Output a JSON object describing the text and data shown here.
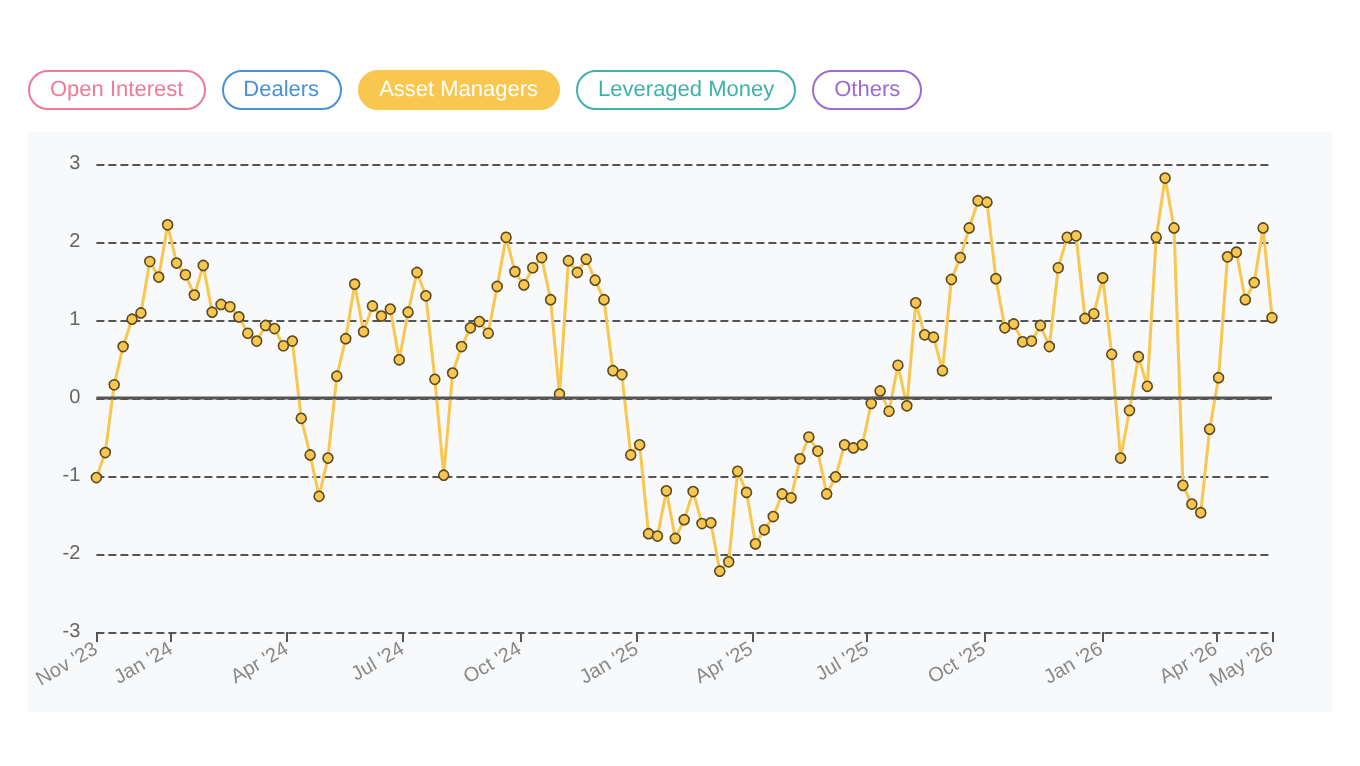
{
  "chart_data": {
    "type": "line",
    "legend": "top left",
    "grid": "y",
    "marker": "circle",
    "line_style": "solid",
    "ylim": [
      -3,
      3
    ],
    "yticks": [
      -3,
      -2,
      -1,
      0,
      1,
      2,
      3
    ],
    "xlim": [
      "2023-11-03",
      "2026-05-15"
    ],
    "xticks": [
      {
        "value": "2023-11-03",
        "label": "Nov '23"
      },
      {
        "value": "2024-01-01",
        "label": "Jan '24"
      },
      {
        "value": "2024-04-01",
        "label": "Apr '24"
      },
      {
        "value": "2024-07-01",
        "label": "Jul '24"
      },
      {
        "value": "2024-10-01",
        "label": "Oct '24"
      },
      {
        "value": "2025-01-01",
        "label": "Jan '25"
      },
      {
        "value": "2025-04-01",
        "label": "Apr '25"
      },
      {
        "value": "2025-07-01",
        "label": "Jul '25"
      },
      {
        "value": "2025-10-01",
        "label": "Oct '25"
      },
      {
        "value": "2026-01-01",
        "label": "Jan '26"
      },
      {
        "value": "2026-04-01",
        "label": "Apr '26"
      },
      {
        "value": "2026-05-15",
        "label": "May '26"
      }
    ],
    "ref_lines": [
      {
        "axis": "y",
        "value": 0,
        "color": "#555555",
        "line_style": "solid"
      }
    ],
    "x": [
      "2023-11-03",
      "2023-11-10",
      "2023-11-17",
      "2023-11-24",
      "2023-12-01",
      "2023-12-08",
      "2023-12-15",
      "2023-12-22",
      "2023-12-29",
      "2024-01-05",
      "2024-01-12",
      "2024-01-19",
      "2024-01-26",
      "2024-02-02",
      "2024-02-09",
      "2024-02-16",
      "2024-02-23",
      "2024-03-01",
      "2024-03-08",
      "2024-03-15",
      "2024-03-22",
      "2024-03-29",
      "2024-04-05",
      "2024-04-12",
      "2024-04-19",
      "2024-04-26",
      "2024-05-03",
      "2024-05-10",
      "2024-05-17",
      "2024-05-24",
      "2024-05-31",
      "2024-06-07",
      "2024-06-14",
      "2024-06-21",
      "2024-06-28",
      "2024-07-05",
      "2024-07-12",
      "2024-07-19",
      "2024-07-26",
      "2024-08-02",
      "2024-08-09",
      "2024-08-16",
      "2024-08-23",
      "2024-08-30",
      "2024-09-06",
      "2024-09-13",
      "2024-09-20",
      "2024-09-27",
      "2024-10-04",
      "2024-10-11",
      "2024-10-18",
      "2024-10-25",
      "2024-11-01",
      "2024-11-08",
      "2024-11-15",
      "2024-11-22",
      "2024-11-29",
      "2024-12-06",
      "2024-12-13",
      "2024-12-20",
      "2024-12-27",
      "2025-01-03",
      "2025-01-10",
      "2025-01-17",
      "2025-01-24",
      "2025-01-31",
      "2025-02-07",
      "2025-02-14",
      "2025-02-21",
      "2025-02-28",
      "2025-03-07",
      "2025-03-14",
      "2025-03-21",
      "2025-03-28",
      "2025-04-04",
      "2025-04-11",
      "2025-04-18",
      "2025-04-25",
      "2025-05-02",
      "2025-05-09",
      "2025-05-16",
      "2025-05-23",
      "2025-05-30",
      "2025-06-06",
      "2025-06-13",
      "2025-06-20",
      "2025-06-27",
      "2025-07-04",
      "2025-07-11",
      "2025-07-18",
      "2025-07-25",
      "2025-08-01",
      "2025-08-08",
      "2025-08-15",
      "2025-08-22",
      "2025-08-29",
      "2025-09-05",
      "2025-09-12",
      "2025-09-19",
      "2025-09-26",
      "2025-10-03",
      "2025-10-10",
      "2025-10-17",
      "2025-10-24",
      "2025-10-31",
      "2025-11-07",
      "2025-11-14",
      "2025-11-21",
      "2025-11-28",
      "2025-12-05",
      "2025-12-12",
      "2025-12-19",
      "2025-12-26",
      "2026-01-02",
      "2026-01-09",
      "2026-01-16",
      "2026-01-23",
      "2026-01-30",
      "2026-02-06",
      "2026-02-13",
      "2026-02-20",
      "2026-02-27",
      "2026-03-06",
      "2026-03-13",
      "2026-03-20",
      "2026-03-27",
      "2026-04-03",
      "2026-04-10",
      "2026-04-17",
      "2026-04-24",
      "2026-05-01",
      "2026-05-08",
      "2026-05-15"
    ],
    "series": [
      {
        "name": "Open Interest",
        "color": "#f0799a",
        "values": [
          null,
          null,
          null,
          null,
          null,
          null,
          null,
          null,
          null,
          null,
          null,
          null,
          null,
          null,
          null,
          null,
          null,
          null,
          null,
          null,
          null,
          null,
          null,
          null,
          null,
          null,
          null,
          null,
          null,
          null,
          null,
          null,
          null,
          null,
          null,
          null,
          null,
          null,
          null,
          null,
          null,
          null,
          null,
          null,
          null,
          null,
          null,
          null,
          null,
          null,
          null,
          null,
          null,
          null,
          null,
          null,
          null,
          null,
          null,
          null,
          null,
          null,
          null,
          null,
          null,
          null,
          null,
          null,
          null,
          null,
          null,
          null,
          null,
          null,
          null,
          null,
          null,
          null,
          null,
          null,
          null,
          null,
          null,
          null,
          null,
          null,
          null,
          null,
          null,
          null,
          null,
          null,
          null,
          null,
          null,
          null,
          null,
          null,
          null,
          null,
          null,
          null,
          null,
          null,
          null,
          null,
          null,
          null,
          null,
          null,
          null,
          null,
          null,
          null,
          null,
          null,
          null,
          null,
          null,
          null,
          null,
          null,
          null,
          null,
          null,
          null,
          null,
          null,
          null,
          null,
          null,
          null,
          null
        ]
      },
      {
        "name": "Dealers",
        "color": "#4a90d9",
        "values": [
          null,
          null,
          null,
          null,
          null,
          null,
          null,
          null,
          null,
          null,
          null,
          null,
          null,
          null,
          null,
          null,
          null,
          null,
          null,
          null,
          null,
          null,
          null,
          null,
          null,
          null,
          null,
          null,
          null,
          null,
          null,
          null,
          null,
          null,
          null,
          null,
          null,
          null,
          null,
          null,
          null,
          null,
          null,
          null,
          null,
          null,
          null,
          null,
          null,
          null,
          null,
          null,
          null,
          null,
          null,
          null,
          null,
          null,
          null,
          null,
          null,
          null,
          null,
          null,
          null,
          null,
          null,
          null,
          null,
          null,
          null,
          null,
          null,
          null,
          null,
          null,
          null,
          null,
          null,
          null,
          null,
          null,
          null,
          null,
          null,
          null,
          null,
          null,
          null,
          null,
          null,
          null,
          null,
          null,
          null,
          null,
          null,
          null,
          null,
          null,
          null,
          null,
          null,
          null,
          null,
          null,
          null,
          null,
          null,
          null,
          null,
          null,
          null,
          null,
          null,
          null,
          null,
          null,
          null,
          null,
          null,
          null,
          null,
          null,
          null,
          null,
          null,
          null,
          null,
          null,
          null,
          null,
          null
        ]
      },
      {
        "name": "Asset Managers",
        "color": "#f9c74f",
        "values": [
          -1.02,
          -0.7,
          0.17,
          0.66,
          1.01,
          1.09,
          1.75,
          1.55,
          2.22,
          1.73,
          1.58,
          1.32,
          1.7,
          1.1,
          1.2,
          1.17,
          1.04,
          0.83,
          0.73,
          0.93,
          0.89,
          0.67,
          0.73,
          -0.26,
          -0.73,
          -1.26,
          -0.77,
          0.28,
          0.76,
          1.46,
          0.85,
          1.18,
          1.05,
          1.14,
          0.49,
          1.1,
          1.61,
          1.31,
          0.24,
          -0.99,
          0.32,
          0.66,
          0.9,
          0.98,
          0.83,
          1.43,
          2.06,
          1.62,
          1.45,
          1.67,
          1.8,
          1.26,
          0.05,
          1.76,
          1.61,
          1.78,
          1.51,
          1.26,
          0.35,
          0.3,
          -0.73,
          -0.6,
          -1.74,
          -1.77,
          -1.19,
          -1.8,
          -1.56,
          -1.2,
          -1.61,
          -1.6,
          -2.22,
          -2.1,
          -0.94,
          -1.21,
          -1.87,
          -1.69,
          -1.52,
          -1.23,
          -1.28,
          -0.78,
          -0.5,
          -0.68,
          -1.23,
          -1.01,
          -0.6,
          -0.64,
          -0.6,
          -0.07,
          0.09,
          -0.17,
          0.42,
          -0.1,
          1.22,
          0.81,
          0.78,
          0.35,
          1.52,
          1.8,
          2.18,
          2.53,
          2.51,
          1.53,
          0.9,
          0.95,
          0.72,
          0.73,
          0.93,
          0.66,
          1.67,
          2.06,
          2.08,
          1.02,
          1.08,
          1.54,
          0.56,
          -0.77,
          -0.16,
          0.53,
          0.15,
          2.06,
          2.82,
          2.18,
          -1.12,
          -1.36,
          -1.47,
          -0.4,
          0.26,
          1.81,
          1.87,
          1.26,
          1.48,
          2.18,
          1.03
        ]
      },
      {
        "name": "Leveraged Money",
        "color": "#3fb0ac",
        "values": [
          null,
          null,
          null,
          null,
          null,
          null,
          null,
          null,
          null,
          null,
          null,
          null,
          null,
          null,
          null,
          null,
          null,
          null,
          null,
          null,
          null,
          null,
          null,
          null,
          null,
          null,
          null,
          null,
          null,
          null,
          null,
          null,
          null,
          null,
          null,
          null,
          null,
          null,
          null,
          null,
          null,
          null,
          null,
          null,
          null,
          null,
          null,
          null,
          null,
          null,
          null,
          null,
          null,
          null,
          null,
          null,
          null,
          null,
          null,
          null,
          null,
          null,
          null,
          null,
          null,
          null,
          null,
          null,
          null,
          null,
          null,
          null,
          null,
          null,
          null,
          null,
          null,
          null,
          null,
          null,
          null,
          null,
          null,
          null,
          null,
          null,
          null,
          null,
          null,
          null,
          null,
          null,
          null,
          null,
          null,
          null,
          null,
          null,
          null,
          null,
          null,
          null,
          null,
          null,
          null,
          null,
          null,
          null,
          null,
          null,
          null,
          null,
          null,
          null,
          null,
          null,
          null,
          null,
          null,
          null,
          null,
          null,
          null,
          null,
          null,
          null,
          null,
          null,
          null,
          null,
          null,
          null,
          null
        ]
      },
      {
        "name": "Others",
        "color": "#9b6bd6",
        "values": [
          null,
          null,
          null,
          null,
          null,
          null,
          null,
          null,
          null,
          null,
          null,
          null,
          null,
          null,
          null,
          null,
          null,
          null,
          null,
          null,
          null,
          null,
          null,
          null,
          null,
          null,
          null,
          null,
          null,
          null,
          null,
          null,
          null,
          null,
          null,
          null,
          null,
          null,
          null,
          null,
          null,
          null,
          null,
          null,
          null,
          null,
          null,
          null,
          null,
          null,
          null,
          null,
          null,
          null,
          null,
          null,
          null,
          null,
          null,
          null,
          null,
          null,
          null,
          null,
          null,
          null,
          null,
          null,
          null,
          null,
          null,
          null,
          null,
          null,
          null,
          null,
          null,
          null,
          null,
          null,
          null,
          null,
          null,
          null,
          null,
          null,
          null,
          null,
          null,
          null,
          null,
          null,
          null,
          null,
          null,
          null,
          null,
          null,
          null,
          null,
          null,
          null,
          null,
          null,
          null,
          null,
          null,
          null,
          null,
          null,
          null,
          null,
          null,
          null,
          null,
          null,
          null,
          null,
          null,
          null,
          null,
          null,
          null,
          null,
          null,
          null,
          null,
          null,
          null,
          null,
          null,
          null,
          null
        ]
      }
    ]
  }
}
